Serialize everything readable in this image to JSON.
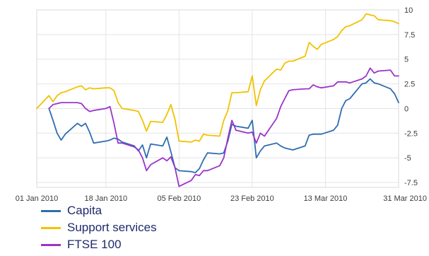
{
  "chart_data": {
    "type": "line",
    "title": "",
    "xlabel": "",
    "ylabel": "",
    "x": [
      "2010-01-01",
      "2010-01-04",
      "2010-01-05",
      "2010-01-06",
      "2010-01-07",
      "2010-01-08",
      "2010-01-11",
      "2010-01-12",
      "2010-01-13",
      "2010-01-14",
      "2010-01-15",
      "2010-01-18",
      "2010-01-19",
      "2010-01-20",
      "2010-01-21",
      "2010-01-22",
      "2010-01-25",
      "2010-01-26",
      "2010-01-27",
      "2010-01-28",
      "2010-01-29",
      "2010-02-01",
      "2010-02-02",
      "2010-02-03",
      "2010-02-04",
      "2010-02-05",
      "2010-02-08",
      "2010-02-09",
      "2010-02-10",
      "2010-02-11",
      "2010-02-12",
      "2010-02-15",
      "2010-02-16",
      "2010-02-17",
      "2010-02-18",
      "2010-02-19",
      "2010-02-22",
      "2010-02-23",
      "2010-02-24",
      "2010-02-25",
      "2010-02-26",
      "2010-03-01",
      "2010-03-02",
      "2010-03-03",
      "2010-03-04",
      "2010-03-05",
      "2010-03-08",
      "2010-03-09",
      "2010-03-10",
      "2010-03-11",
      "2010-03-12",
      "2010-03-15",
      "2010-03-16",
      "2010-03-17",
      "2010-03-18",
      "2010-03-19",
      "2010-03-22",
      "2010-03-23",
      "2010-03-24",
      "2010-03-25",
      "2010-03-26",
      "2010-03-29",
      "2010-03-30",
      "2010-03-31"
    ],
    "x_tick_labels": [
      "01 Jan 2010",
      "18 Jan 2010",
      "05 Feb 2010",
      "23 Feb 2010",
      "13 Mar 2010",
      "31 Mar 2010"
    ],
    "x_tick_dates": [
      "2010-01-01",
      "2010-01-18",
      "2010-02-05",
      "2010-02-23",
      "2010-03-13",
      "2010-03-31"
    ],
    "x_range": [
      "2010-01-01",
      "2010-03-31"
    ],
    "y_ticks": [
      10,
      7.5,
      5,
      2.5,
      0,
      -2.5,
      -5,
      -7.5
    ],
    "y_tick_labels": [
      "10",
      "7.5",
      "5",
      "2.5",
      "0",
      "-2.5",
      "-5",
      "-7.5"
    ],
    "ylim": [
      -8,
      10
    ],
    "y_axis_side": "right",
    "grid": true,
    "legend_position": "bottom-left",
    "series": [
      {
        "name": "Capita",
        "color": "#2f6eb0",
        "values": [
          null,
          0,
          -1.2,
          -2.5,
          -3.2,
          -2.6,
          -1.5,
          -1.8,
          -1.5,
          -2.4,
          -3.5,
          -3.3,
          -3.2,
          -3.0,
          -3.1,
          -3.4,
          -3.8,
          -4.3,
          -3.7,
          -5.0,
          -3.6,
          -3.8,
          -2.9,
          -4.4,
          -6.0,
          -6.3,
          -6.4,
          -6.5,
          -6.1,
          -5.2,
          -4.5,
          -4.6,
          -4.5,
          -3.3,
          -1.6,
          -1.8,
          -2.0,
          -1.2,
          -5.0,
          -4.3,
          -3.8,
          -3.5,
          -3.8,
          -4.0,
          -4.1,
          -4.2,
          -3.8,
          -2.7,
          -2.6,
          -2.6,
          -2.6,
          -2.2,
          -1.7,
          0.0,
          0.8,
          1.0,
          2.5,
          2.6,
          3.0,
          2.6,
          2.5,
          2.0,
          1.5,
          0.6
        ]
      },
      {
        "name": "Support services",
        "color": "#f2c200",
        "values": [
          0,
          1.3,
          0.7,
          1.3,
          1.6,
          1.7,
          2.2,
          2.3,
          1.9,
          2.1,
          2.0,
          2.1,
          2.1,
          1.8,
          0.6,
          0.0,
          -0.2,
          -0.3,
          -1.2,
          -2.3,
          -1.3,
          -1.4,
          -0.6,
          0.4,
          -1.1,
          -3.3,
          -3.4,
          -3.2,
          -3.3,
          -2.6,
          -2.7,
          -2.8,
          -1.2,
          -0.2,
          1.6,
          1.6,
          1.7,
          3.3,
          0.3,
          1.9,
          2.8,
          4.0,
          3.9,
          4.6,
          4.8,
          4.8,
          5.3,
          6.7,
          6.3,
          6.0,
          6.5,
          7.0,
          7.3,
          7.9,
          8.3,
          8.4,
          9.0,
          9.6,
          9.5,
          9.4,
          9.0,
          8.9,
          8.8,
          8.6
        ]
      },
      {
        "name": "FTSE 100",
        "color": "#9b35c9",
        "values": [
          null,
          0,
          0.4,
          0.5,
          0.6,
          0.6,
          0.6,
          0.5,
          0.0,
          -0.3,
          -0.2,
          0.0,
          0.2,
          -1.5,
          -3.5,
          -3.5,
          -3.9,
          -4.2,
          -5.0,
          -6.3,
          -5.7,
          -5.0,
          -5.3,
          -4.9,
          -6.0,
          -7.9,
          -7.3,
          -6.7,
          -6.8,
          -6.3,
          -6.3,
          -5.8,
          -5.0,
          -3.0,
          -1.2,
          -2.2,
          -2.5,
          -2.4,
          -3.5,
          -2.5,
          -2.8,
          -1.0,
          0.2,
          1.0,
          1.8,
          1.9,
          2.0,
          2.0,
          2.4,
          2.2,
          2.1,
          2.3,
          2.7,
          2.7,
          2.7,
          2.6,
          3.0,
          3.3,
          4.1,
          3.6,
          3.8,
          3.9,
          3.3,
          3.3
        ]
      }
    ]
  }
}
